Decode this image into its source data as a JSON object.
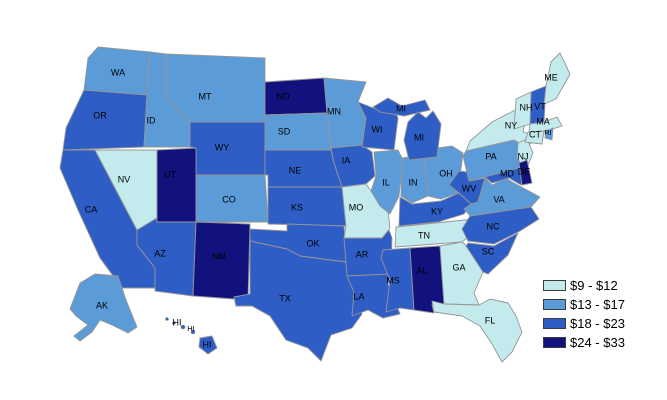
{
  "legend": {
    "items": [
      {
        "label": "$9 - $12",
        "color": "#c3ebee"
      },
      {
        "label": "$13 - $17",
        "color": "#5b9bd7"
      },
      {
        "label": "$18 - $23",
        "color": "#2e5ec5"
      },
      {
        "label": "$24 - $33",
        "color": "#12127f"
      }
    ]
  },
  "map": {
    "border_color": "#969696",
    "label_color": "#000000",
    "states": [
      {
        "id": "WA",
        "bin": 1
      },
      {
        "id": "OR",
        "bin": 2
      },
      {
        "id": "CA",
        "bin": 2
      },
      {
        "id": "NV",
        "bin": 0
      },
      {
        "id": "ID",
        "bin": 1
      },
      {
        "id": "MT",
        "bin": 1
      },
      {
        "id": "WY",
        "bin": 2
      },
      {
        "id": "UT",
        "bin": 3
      },
      {
        "id": "CO",
        "bin": 1
      },
      {
        "id": "AZ",
        "bin": 2
      },
      {
        "id": "NM",
        "bin": 3
      },
      {
        "id": "ND",
        "bin": 3
      },
      {
        "id": "SD",
        "bin": 1
      },
      {
        "id": "NE",
        "bin": 2
      },
      {
        "id": "KS",
        "bin": 2
      },
      {
        "id": "OK",
        "bin": 2
      },
      {
        "id": "TX",
        "bin": 2
      },
      {
        "id": "MN",
        "bin": 1
      },
      {
        "id": "IA",
        "bin": 2
      },
      {
        "id": "MO",
        "bin": 0
      },
      {
        "id": "AR",
        "bin": 2
      },
      {
        "id": "LA",
        "bin": 2
      },
      {
        "id": "WI",
        "bin": 2
      },
      {
        "id": "IL",
        "bin": 1
      },
      {
        "id": "IN",
        "bin": 1
      },
      {
        "id": "OH",
        "bin": 1
      },
      {
        "id": "MI",
        "bin": 2
      },
      {
        "id": "KY",
        "bin": 2
      },
      {
        "id": "TN",
        "bin": 0
      },
      {
        "id": "MS",
        "bin": 2
      },
      {
        "id": "AL",
        "bin": 3
      },
      {
        "id": "GA",
        "bin": 0
      },
      {
        "id": "FL",
        "bin": 0
      },
      {
        "id": "WV",
        "bin": 2
      },
      {
        "id": "VA",
        "bin": 1
      },
      {
        "id": "NC",
        "bin": 2
      },
      {
        "id": "SC",
        "bin": 2
      },
      {
        "id": "PA",
        "bin": 1
      },
      {
        "id": "NY",
        "bin": 0
      },
      {
        "id": "NJ",
        "bin": 0
      },
      {
        "id": "MD",
        "bin": 2
      },
      {
        "id": "DE",
        "bin": 3
      },
      {
        "id": "VT",
        "bin": 2
      },
      {
        "id": "NH",
        "bin": 0
      },
      {
        "id": "ME",
        "bin": 0
      },
      {
        "id": "MA",
        "bin": 0
      },
      {
        "id": "CT",
        "bin": 0
      },
      {
        "id": "RI",
        "bin": 1
      },
      {
        "id": "AK",
        "bin": 1
      },
      {
        "id": "HI",
        "bin": 2
      }
    ]
  },
  "chart_data": {
    "type": "choropleth",
    "region": "United States",
    "bins": [
      "$9 - $12",
      "$13 - $17",
      "$18 - $23",
      "$24 - $33"
    ],
    "bin_colors": [
      "#c3ebee",
      "#5b9bd7",
      "#2e5ec5",
      "#12127f"
    ],
    "legend_position": "bottom-right",
    "values_by_state": {
      "WA": "$13 - $17",
      "OR": "$18 - $23",
      "CA": "$18 - $23",
      "NV": "$9 - $12",
      "ID": "$13 - $17",
      "MT": "$13 - $17",
      "WY": "$18 - $23",
      "UT": "$24 - $33",
      "CO": "$13 - $17",
      "AZ": "$18 - $23",
      "NM": "$24 - $33",
      "ND": "$24 - $33",
      "SD": "$13 - $17",
      "NE": "$18 - $23",
      "KS": "$18 - $23",
      "OK": "$18 - $23",
      "TX": "$18 - $23",
      "MN": "$13 - $17",
      "IA": "$18 - $23",
      "MO": "$9 - $12",
      "AR": "$18 - $23",
      "LA": "$18 - $23",
      "WI": "$18 - $23",
      "IL": "$13 - $17",
      "IN": "$13 - $17",
      "OH": "$13 - $17",
      "MI": "$18 - $23",
      "KY": "$18 - $23",
      "TN": "$9 - $12",
      "MS": "$18 - $23",
      "AL": "$24 - $33",
      "GA": "$9 - $12",
      "FL": "$9 - $12",
      "WV": "$18 - $23",
      "VA": "$13 - $17",
      "NC": "$18 - $23",
      "SC": "$18 - $23",
      "PA": "$13 - $17",
      "NY": "$9 - $12",
      "NJ": "$9 - $12",
      "MD": "$18 - $23",
      "DE": "$24 - $33",
      "VT": "$18 - $23",
      "NH": "$9 - $12",
      "ME": "$9 - $12",
      "MA": "$9 - $12",
      "CT": "$9 - $12",
      "RI": "$13 - $17",
      "AK": "$13 - $17",
      "HI": "$18 - $23"
    }
  }
}
